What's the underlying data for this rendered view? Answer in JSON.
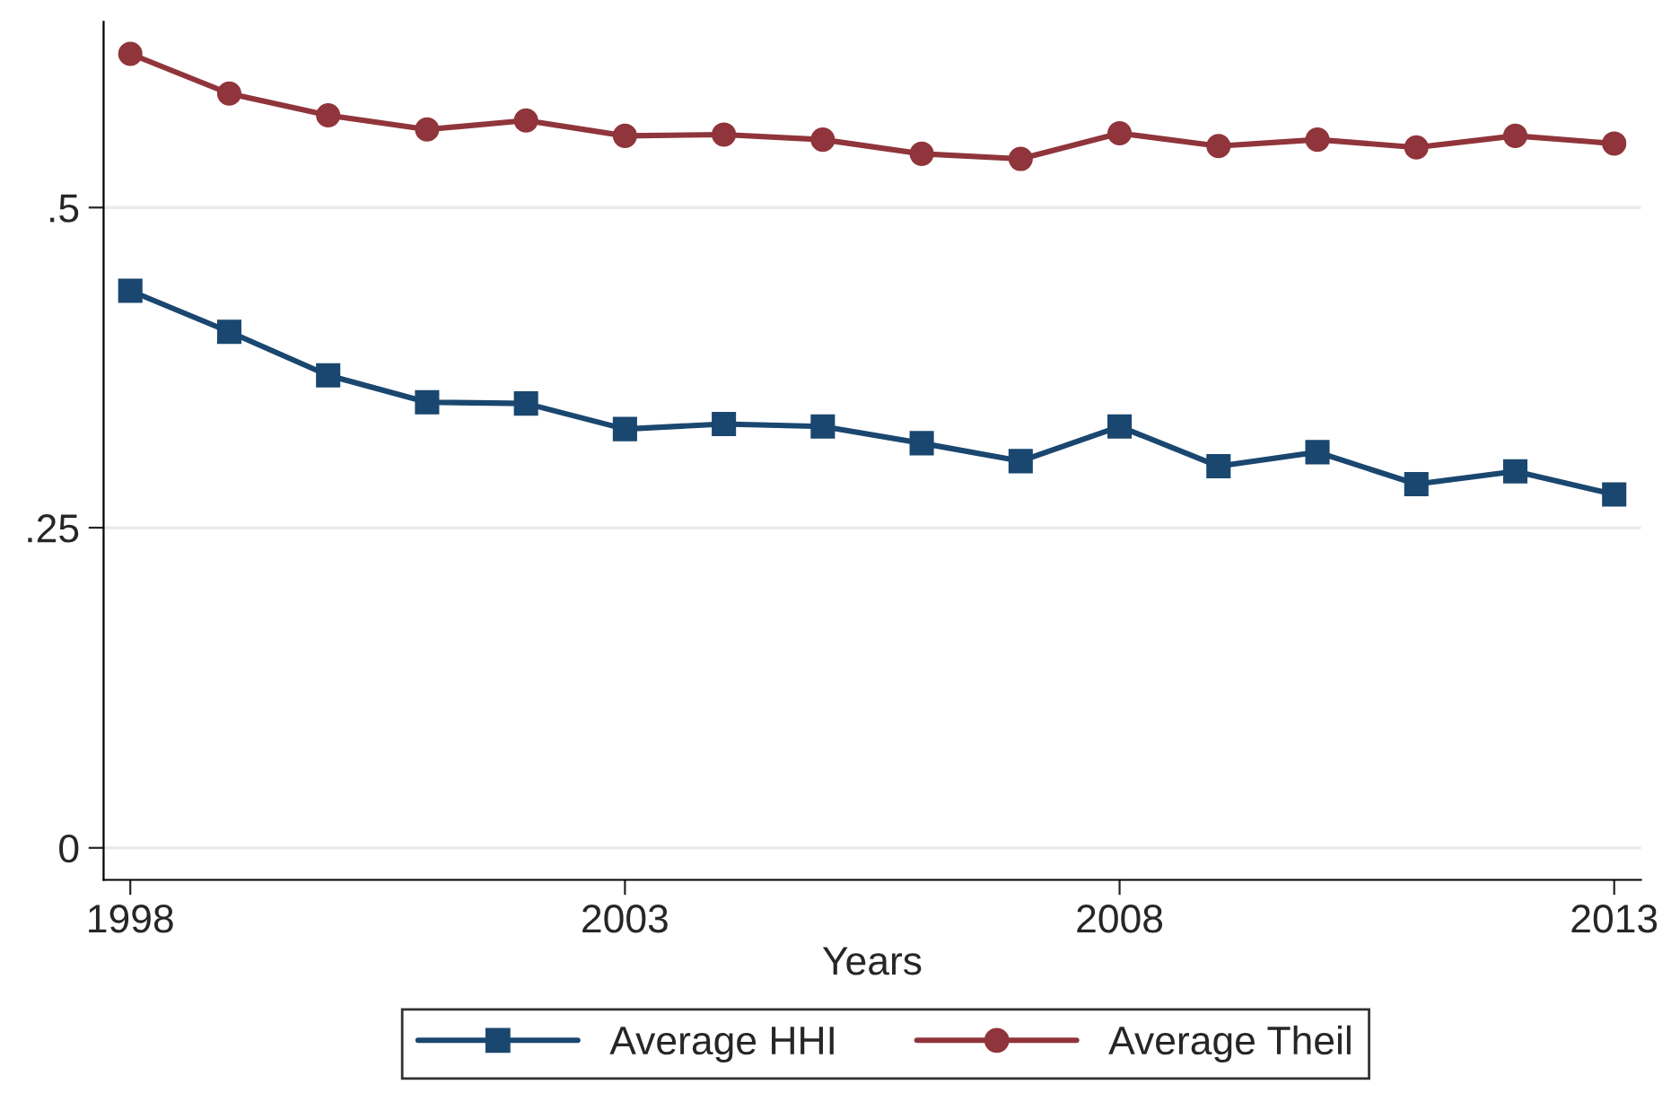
{
  "chart_data": {
    "type": "line",
    "xlabel": "Years",
    "x": [
      1998,
      1999,
      2000,
      2001,
      2002,
      2003,
      2004,
      2005,
      2006,
      2007,
      2008,
      2009,
      2010,
      2011,
      2012,
      2013
    ],
    "series": [
      {
        "name": "Average HHI",
        "color": "#1a476f",
        "marker": "square",
        "values": [
          0.435,
          0.403,
          0.369,
          0.348,
          0.347,
          0.327,
          0.331,
          0.329,
          0.316,
          0.302,
          0.329,
          0.298,
          0.309,
          0.284,
          0.294,
          0.276
        ]
      },
      {
        "name": "Average Theil",
        "color": "#90353b",
        "marker": "circle",
        "values": [
          0.62,
          0.589,
          0.572,
          0.561,
          0.568,
          0.556,
          0.557,
          0.553,
          0.542,
          0.538,
          0.558,
          0.548,
          0.553,
          0.547,
          0.556,
          0.55
        ]
      }
    ],
    "xlim": [
      1997.73,
      2013.27
    ],
    "xticks": [
      1998,
      2003,
      2008,
      2013
    ],
    "ylim": [
      -0.025,
      0.645
    ],
    "yticks": [
      {
        "value": 0,
        "label": "0"
      },
      {
        "value": 0.25,
        "label": ".25"
      },
      {
        "value": 0.5,
        "label": ".5"
      }
    ],
    "grid": "y",
    "legend": "bottom",
    "line_style": "solid"
  }
}
